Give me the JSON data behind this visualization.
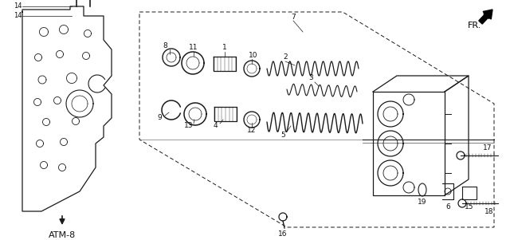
{
  "bg_color": "#ffffff",
  "line_color": "#1a1a1a",
  "text_color": "#111111",
  "figsize": [
    6.4,
    3.01
  ],
  "dpi": 100
}
